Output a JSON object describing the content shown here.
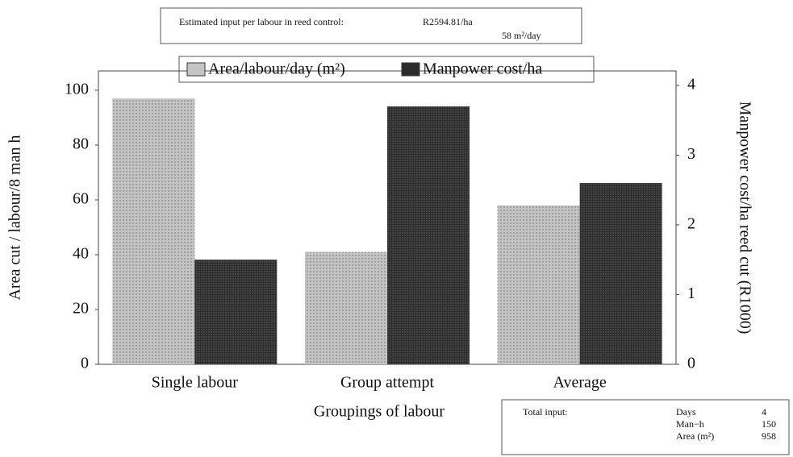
{
  "chart_data": {
    "type": "bar",
    "categories": [
      "Single labour",
      "Group attempt",
      "Average"
    ],
    "series": [
      {
        "name": "Area/labour/day (m²)",
        "color": "#c4c4c4",
        "values": [
          97,
          41,
          58
        ]
      },
      {
        "name": "Manpower cost/ha",
        "color": "#2b2b2b",
        "axis": "y2",
        "values": [
          1.5,
          3.7,
          2.6
        ]
      }
    ],
    "ylim": [
      0,
      100
    ],
    "yticks": [
      0,
      20,
      40,
      60,
      80,
      100
    ],
    "y2lim": [
      0,
      4
    ],
    "y2ticks": [
      0,
      1,
      2,
      3,
      4
    ],
    "ylabel": "Area cut / labour/8 man h",
    "y2label": "Manpower cost/ha reed cut (R1000)",
    "xlabel": "Groupings of labour",
    "estimate": {
      "label": "Estimated input per labour in reed control:",
      "value": "R2594.81/ha",
      "rate": "58 m²/day"
    },
    "totals": {
      "label": "Total input:",
      "rows": [
        {
          "name": "Days",
          "value": 4
        },
        {
          "name": "Man−h",
          "value": 150
        },
        {
          "name": "Area (m²)",
          "value": 958
        }
      ]
    }
  }
}
